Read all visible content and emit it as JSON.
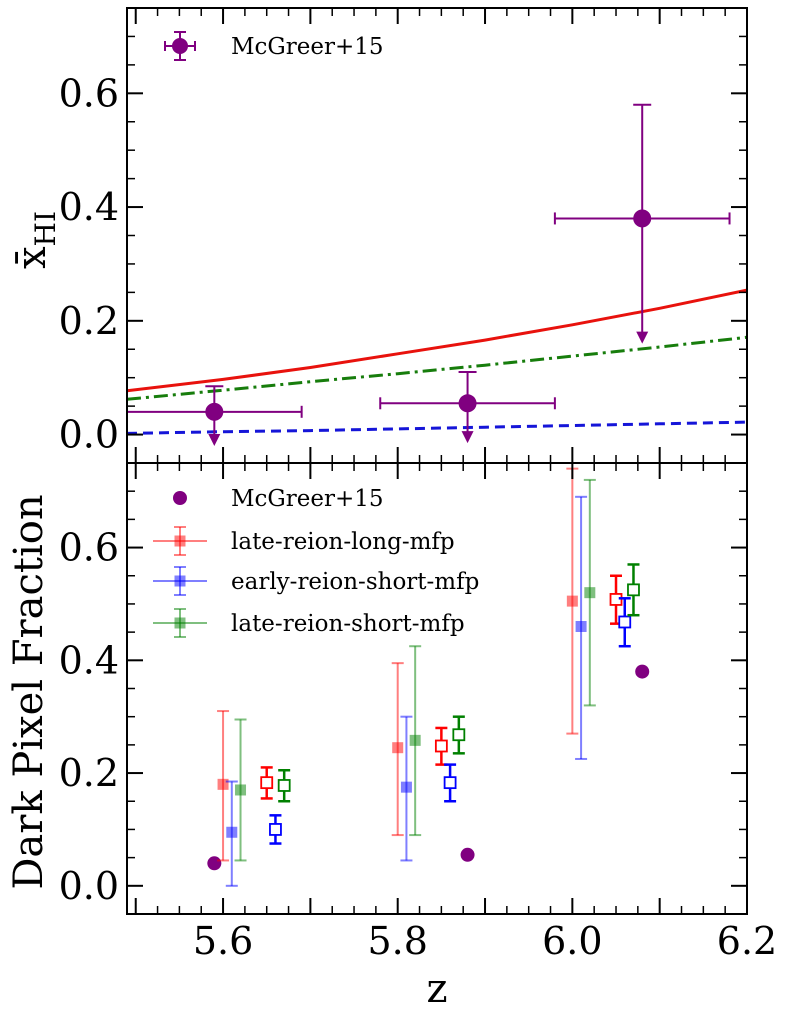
{
  "chart_data": [
    {
      "type": "line",
      "panel": "top",
      "ylabel_main": "x̄",
      "ylabel_sub": "HI",
      "xlim": [
        5.49,
        6.2
      ],
      "ylim": [
        -0.05,
        0.75
      ],
      "yticks": [
        0.0,
        0.2,
        0.4,
        0.6
      ],
      "ytick_labels": [
        "0.0",
        "0.2",
        "0.4",
        "0.6"
      ],
      "legend": {
        "location": "top-left",
        "entries": [
          "McGreer+15"
        ]
      },
      "series": [
        {
          "name": "solid red model",
          "color": "#e8120d",
          "style": "solid",
          "x": [
            5.49,
            5.6,
            5.7,
            5.8,
            5.9,
            6.0,
            6.1,
            6.2
          ],
          "y": [
            0.077,
            0.097,
            0.118,
            0.142,
            0.166,
            0.193,
            0.222,
            0.254
          ]
        },
        {
          "name": "dash-dot green model",
          "color": "#177d0c",
          "style": "dashdot",
          "x": [
            5.49,
            5.6,
            5.7,
            5.8,
            5.9,
            6.0,
            6.1,
            6.2
          ],
          "y": [
            0.062,
            0.078,
            0.093,
            0.107,
            0.122,
            0.138,
            0.154,
            0.171
          ]
        },
        {
          "name": "dashed blue model",
          "color": "#1515d8",
          "style": "dashed",
          "x": [
            5.49,
            5.6,
            5.7,
            5.8,
            5.9,
            6.0,
            6.1,
            6.2
          ],
          "y": [
            0.002,
            0.005,
            0.007,
            0.01,
            0.013,
            0.016,
            0.019,
            0.022
          ]
        }
      ],
      "points": [
        {
          "series": "McGreer+15",
          "x": 5.59,
          "y": 0.04,
          "xerr": 0.1,
          "yerr_up": 0.045,
          "upper_limit_to": -0.02
        },
        {
          "series": "McGreer+15",
          "x": 5.88,
          "y": 0.055,
          "xerr": 0.1,
          "yerr_up": 0.055,
          "upper_limit_to": -0.015
        },
        {
          "series": "McGreer+15",
          "x": 6.08,
          "y": 0.38,
          "xerr": 0.1,
          "yerr_up": 0.2,
          "upper_limit_to": 0.16
        }
      ]
    },
    {
      "type": "scatter",
      "panel": "bottom",
      "xlabel": "z",
      "ylabel": "Dark Pixel Fraction",
      "xlim": [
        5.49,
        6.2
      ],
      "ylim": [
        -0.05,
        0.75
      ],
      "xticks": [
        5.6,
        5.8,
        6.0,
        6.2
      ],
      "xtick_labels": [
        "5.6",
        "5.8",
        "6.0",
        "6.2"
      ],
      "yticks": [
        0.0,
        0.2,
        0.4,
        0.6
      ],
      "ytick_labels": [
        "0.0",
        "0.2",
        "0.4",
        "0.6"
      ],
      "legend": {
        "location": "top-left",
        "entries": [
          "McGreer+15",
          "late-reion-long-mfp",
          "early-reion-short-mfp",
          "late-reion-short-mfp"
        ]
      },
      "series": [
        {
          "name": "McGreer+15",
          "color": "#800080",
          "marker": "circle",
          "x": [
            5.59,
            5.88,
            6.08
          ],
          "y": [
            0.04,
            0.055,
            0.38
          ]
        },
        {
          "name": "late-reion-long-mfp",
          "color": "#ff0000",
          "filled": [
            {
              "x": 5.6,
              "y": 0.18,
              "lo": 0.045,
              "hi": 0.31
            },
            {
              "x": 5.8,
              "y": 0.245,
              "lo": 0.09,
              "hi": 0.395
            },
            {
              "x": 6.0,
              "y": 0.505,
              "lo": 0.27,
              "hi": 0.74
            }
          ],
          "open": [
            {
              "x": 5.65,
              "y": 0.183,
              "lo": 0.155,
              "hi": 0.21
            },
            {
              "x": 5.85,
              "y": 0.248,
              "lo": 0.215,
              "hi": 0.28
            },
            {
              "x": 6.05,
              "y": 0.508,
              "lo": 0.465,
              "hi": 0.55
            }
          ]
        },
        {
          "name": "early-reion-short-mfp",
          "color": "#0000ff",
          "filled": [
            {
              "x": 5.61,
              "y": 0.095,
              "lo": 0.0,
              "hi": 0.185
            },
            {
              "x": 5.81,
              "y": 0.175,
              "lo": 0.045,
              "hi": 0.3
            },
            {
              "x": 6.01,
              "y": 0.46,
              "lo": 0.225,
              "hi": 0.69
            }
          ],
          "open": [
            {
              "x": 5.66,
              "y": 0.1,
              "lo": 0.075,
              "hi": 0.125
            },
            {
              "x": 5.86,
              "y": 0.183,
              "lo": 0.15,
              "hi": 0.215
            },
            {
              "x": 6.06,
              "y": 0.468,
              "lo": 0.425,
              "hi": 0.51
            }
          ]
        },
        {
          "name": "late-reion-short-mfp",
          "color": "#008000",
          "filled": [
            {
              "x": 5.62,
              "y": 0.17,
              "lo": 0.045,
              "hi": 0.295
            },
            {
              "x": 5.82,
              "y": 0.258,
              "lo": 0.09,
              "hi": 0.425
            },
            {
              "x": 6.02,
              "y": 0.52,
              "lo": 0.32,
              "hi": 0.72
            }
          ],
          "open": [
            {
              "x": 5.67,
              "y": 0.178,
              "lo": 0.15,
              "hi": 0.205
            },
            {
              "x": 5.87,
              "y": 0.268,
              "lo": 0.235,
              "hi": 0.3
            },
            {
              "x": 6.07,
              "y": 0.525,
              "lo": 0.48,
              "hi": 0.57
            }
          ]
        }
      ]
    }
  ]
}
